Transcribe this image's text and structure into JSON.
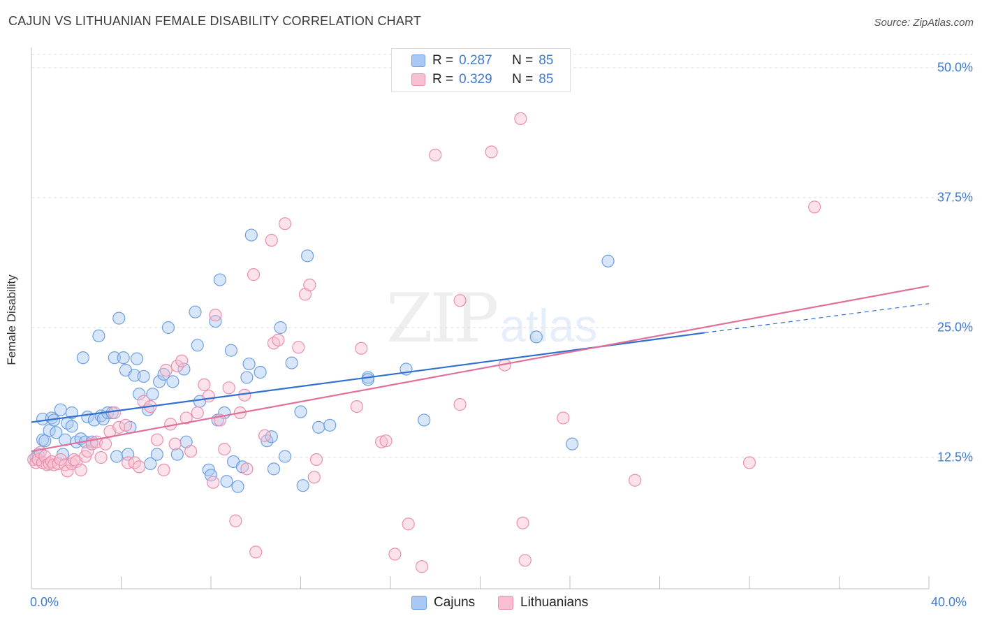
{
  "header": {
    "title": "CAJUN VS LITHUANIAN FEMALE DISABILITY CORRELATION CHART",
    "source": "Source: ZipAtlas.com"
  },
  "watermark": {
    "zip": "ZIP",
    "atlas": "atlas"
  },
  "legend": {
    "series": [
      {
        "r_label": "R =",
        "r_value": "0.287",
        "n_label": "N =",
        "n_value": "85",
        "color": "#a9c8f3",
        "stroke": "#6f9fe0"
      },
      {
        "r_label": "R =",
        "r_value": "0.329",
        "n_label": "N =",
        "n_value": "85",
        "color": "#f8bfd0",
        "stroke": "#ea8fae"
      }
    ]
  },
  "bottom_legend": {
    "cajuns": "Cajuns",
    "lithuanians": "Lithuanians"
  },
  "chart_data": {
    "type": "scatter",
    "ylabel": "Female Disability",
    "xlim": [
      0,
      40
    ],
    "ylim": [
      0,
      52.5
    ],
    "y_ticks": [
      {
        "value": 12.5,
        "label": "12.5%"
      },
      {
        "value": 25.0,
        "label": "25.0%"
      },
      {
        "value": 37.5,
        "label": "37.5%"
      },
      {
        "value": 50.0,
        "label": "50.0%"
      }
    ],
    "x_tick_labels": {
      "min": "0.0%",
      "max": "40.0%"
    },
    "grid": true,
    "series": [
      {
        "name": "Cajuns",
        "color": "#6f9fe0",
        "fill": "#a9c8f3",
        "line_color": "#2f6fcf",
        "trend": {
          "x0": 0,
          "y0": 15.9,
          "x1": 30,
          "y1": 24.5,
          "dash_to_x": 40,
          "dash_to_y": 27.3
        },
        "points": [
          [
            0.2,
            12.5
          ],
          [
            0.3,
            12.8
          ],
          [
            0.5,
            14.2
          ],
          [
            0.5,
            16.2
          ],
          [
            0.6,
            14.1
          ],
          [
            0.8,
            15.1
          ],
          [
            0.9,
            16.3
          ],
          [
            1.0,
            16.1
          ],
          [
            1.1,
            14.9
          ],
          [
            1.3,
            17.1
          ],
          [
            1.4,
            12.8
          ],
          [
            1.5,
            14.2
          ],
          [
            1.6,
            15.8
          ],
          [
            1.8,
            16.8
          ],
          [
            1.8,
            15.5
          ],
          [
            2.0,
            14.0
          ],
          [
            2.2,
            14.3
          ],
          [
            2.3,
            22.1
          ],
          [
            2.4,
            14.0
          ],
          [
            2.5,
            16.4
          ],
          [
            2.7,
            14.0
          ],
          [
            2.8,
            16.1
          ],
          [
            3.0,
            24.2
          ],
          [
            3.1,
            16.5
          ],
          [
            3.2,
            16.2
          ],
          [
            3.4,
            16.8
          ],
          [
            3.6,
            16.8
          ],
          [
            3.7,
            22.1
          ],
          [
            3.8,
            12.6
          ],
          [
            3.9,
            25.9
          ],
          [
            4.1,
            22.1
          ],
          [
            4.3,
            12.8
          ],
          [
            4.2,
            20.9
          ],
          [
            4.4,
            15.4
          ],
          [
            4.6,
            20.4
          ],
          [
            4.7,
            22.0
          ],
          [
            4.8,
            18.6
          ],
          [
            5.0,
            20.3
          ],
          [
            5.2,
            17.1
          ],
          [
            5.3,
            11.9
          ],
          [
            5.4,
            18.6
          ],
          [
            5.6,
            12.8
          ],
          [
            5.7,
            19.8
          ],
          [
            5.9,
            20.5
          ],
          [
            6.1,
            25.0
          ],
          [
            6.3,
            19.8
          ],
          [
            6.5,
            12.8
          ],
          [
            6.8,
            21.0
          ],
          [
            6.9,
            14.0
          ],
          [
            7.3,
            26.5
          ],
          [
            7.4,
            23.3
          ],
          [
            7.5,
            17.9
          ],
          [
            7.9,
            11.3
          ],
          [
            8.0,
            10.8
          ],
          [
            8.2,
            25.6
          ],
          [
            8.3,
            16.1
          ],
          [
            8.4,
            29.6
          ],
          [
            8.6,
            16.8
          ],
          [
            8.7,
            10.2
          ],
          [
            8.9,
            22.8
          ],
          [
            9.0,
            12.1
          ],
          [
            9.2,
            9.7
          ],
          [
            9.4,
            11.6
          ],
          [
            9.6,
            20.2
          ],
          [
            9.7,
            21.5
          ],
          [
            9.8,
            33.9
          ],
          [
            10.2,
            20.7
          ],
          [
            10.5,
            14.1
          ],
          [
            10.7,
            14.5
          ],
          [
            10.8,
            11.4
          ],
          [
            11.1,
            25.0
          ],
          [
            11.3,
            12.6
          ],
          [
            11.6,
            21.6
          ],
          [
            12.0,
            16.9
          ],
          [
            12.1,
            9.8
          ],
          [
            12.3,
            31.9
          ],
          [
            12.8,
            15.4
          ],
          [
            13.3,
            15.6
          ],
          [
            15.0,
            20.2
          ],
          [
            15.0,
            20.0
          ],
          [
            16.7,
            21.0
          ],
          [
            17.5,
            16.1
          ],
          [
            22.5,
            24.1
          ],
          [
            24.1,
            13.8
          ],
          [
            25.7,
            31.4
          ]
        ]
      },
      {
        "name": "Lithuanians",
        "color": "#ea8fae",
        "fill": "#f8bfd0",
        "line_color": "#e0709a",
        "trend": {
          "x0": 0,
          "y0": 13.1,
          "x1": 40,
          "y1": 29.0
        },
        "points": [
          [
            0.1,
            12.3
          ],
          [
            0.2,
            12.0
          ],
          [
            0.3,
            12.3
          ],
          [
            0.4,
            13.0
          ],
          [
            0.5,
            12.0
          ],
          [
            0.6,
            12.6
          ],
          [
            0.7,
            11.8
          ],
          [
            0.8,
            11.9
          ],
          [
            0.9,
            12.1
          ],
          [
            1.0,
            11.8
          ],
          [
            1.2,
            11.9
          ],
          [
            1.3,
            12.3
          ],
          [
            1.5,
            11.8
          ],
          [
            1.6,
            11.2
          ],
          [
            1.8,
            11.9
          ],
          [
            1.9,
            12.3
          ],
          [
            2.0,
            12.1
          ],
          [
            2.2,
            11.3
          ],
          [
            2.4,
            12.6
          ],
          [
            2.5,
            13.1
          ],
          [
            2.7,
            13.8
          ],
          [
            2.9,
            14.0
          ],
          [
            3.1,
            12.5
          ],
          [
            3.3,
            13.8
          ],
          [
            3.5,
            15.0
          ],
          [
            3.7,
            16.8
          ],
          [
            3.9,
            15.4
          ],
          [
            4.2,
            15.6
          ],
          [
            4.3,
            12.0
          ],
          [
            4.6,
            12.0
          ],
          [
            4.8,
            11.6
          ],
          [
            5.0,
            17.9
          ],
          [
            5.3,
            17.4
          ],
          [
            5.6,
            14.2
          ],
          [
            5.9,
            11.3
          ],
          [
            6.0,
            20.9
          ],
          [
            6.2,
            15.7
          ],
          [
            6.4,
            13.8
          ],
          [
            6.5,
            21.3
          ],
          [
            6.7,
            21.8
          ],
          [
            6.9,
            16.3
          ],
          [
            7.1,
            13.1
          ],
          [
            7.4,
            16.8
          ],
          [
            7.7,
            19.5
          ],
          [
            7.9,
            18.4
          ],
          [
            8.1,
            10.1
          ],
          [
            8.2,
            26.2
          ],
          [
            8.4,
            16.1
          ],
          [
            8.6,
            13.3
          ],
          [
            8.8,
            19.2
          ],
          [
            9.1,
            6.4
          ],
          [
            9.3,
            16.8
          ],
          [
            9.5,
            18.5
          ],
          [
            9.6,
            11.4
          ],
          [
            9.9,
            30.1
          ],
          [
            10.0,
            3.4
          ],
          [
            10.4,
            14.6
          ],
          [
            10.7,
            33.4
          ],
          [
            10.8,
            23.5
          ],
          [
            11.0,
            23.8
          ],
          [
            11.3,
            35.0
          ],
          [
            11.9,
            23.1
          ],
          [
            12.2,
            28.2
          ],
          [
            12.4,
            29.1
          ],
          [
            12.6,
            10.6
          ],
          [
            12.7,
            12.3
          ],
          [
            14.5,
            17.4
          ],
          [
            14.7,
            23.0
          ],
          [
            15.6,
            14.0
          ],
          [
            15.8,
            14.1
          ],
          [
            16.2,
            3.2
          ],
          [
            16.8,
            6.1
          ],
          [
            17.4,
            2.0
          ],
          [
            18.0,
            41.6
          ],
          [
            19.1,
            27.6
          ],
          [
            19.1,
            17.6
          ],
          [
            20.5,
            41.9
          ],
          [
            21.1,
            21.4
          ],
          [
            21.8,
            45.1
          ],
          [
            21.9,
            6.2
          ],
          [
            22.0,
            2.6
          ],
          [
            23.7,
            16.3
          ],
          [
            26.9,
            10.3
          ],
          [
            32.0,
            12.0
          ],
          [
            34.9,
            36.6
          ]
        ]
      }
    ]
  }
}
